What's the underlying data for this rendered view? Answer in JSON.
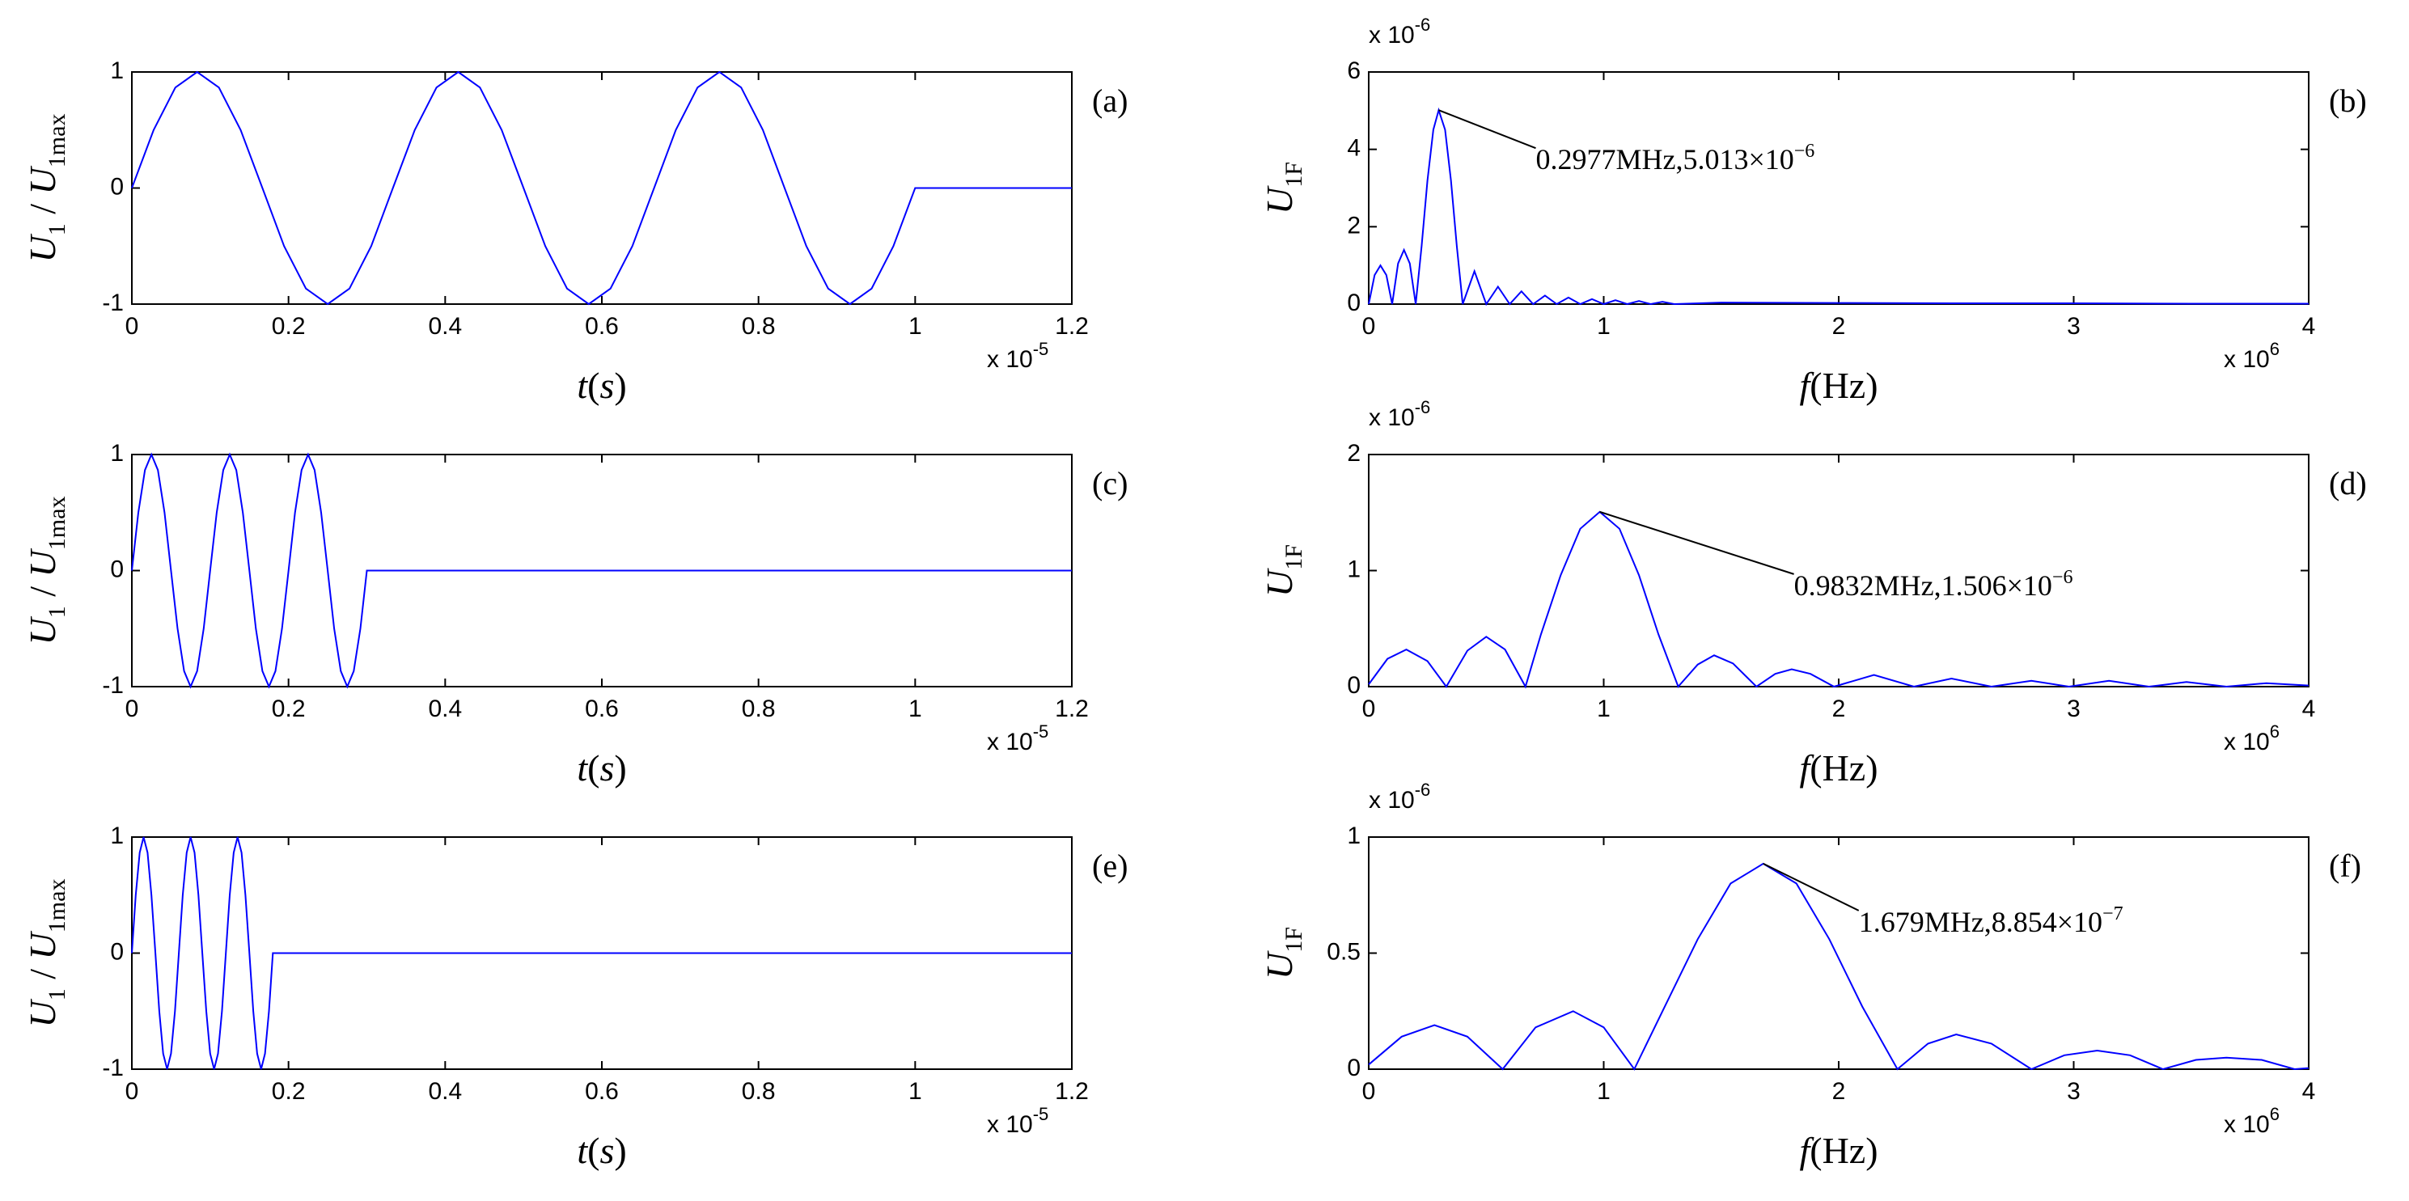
{
  "chart_data": [
    {
      "type": "line",
      "tag": "(a)",
      "color": "#0000ff",
      "xlabel": [
        {
          "text": "t",
          "italic": true
        },
        {
          "text": "("
        },
        {
          "text": "s",
          "italic": true
        },
        {
          "text": ")"
        }
      ],
      "ylabel": [
        {
          "text": "U",
          "italic": true
        },
        {
          "text": "1",
          "sub": true
        },
        {
          "text": " / "
        },
        {
          "text": "U",
          "italic": true
        },
        {
          "text": "1max",
          "sub": true
        }
      ],
      "x_scale_label": "x 10",
      "x_scale_exponent": "-5",
      "xlim": [
        0,
        1.2
      ],
      "xticks": [
        0,
        0.2,
        0.4,
        0.6,
        0.8,
        1,
        1.2
      ],
      "ylim": [
        -1,
        1
      ],
      "yticks": [
        -1,
        0,
        1
      ],
      "x": [
        0,
        0.0278,
        0.0556,
        0.0833,
        0.1111,
        0.1389,
        0.1667,
        0.1944,
        0.2222,
        0.25,
        0.2778,
        0.3056,
        0.3333,
        0.3611,
        0.3889,
        0.4167,
        0.4444,
        0.4722,
        0.5,
        0.5278,
        0.5556,
        0.5833,
        0.6111,
        0.6389,
        0.6667,
        0.6944,
        0.7222,
        0.75,
        0.7778,
        0.8056,
        0.8333,
        0.8611,
        0.8889,
        0.9167,
        0.9444,
        0.9722,
        1.0,
        1.2
      ],
      "values": [
        0,
        0.5,
        0.866,
        1,
        0.866,
        0.5,
        0,
        -0.5,
        -0.866,
        -1,
        -0.866,
        -0.5,
        0,
        0.5,
        0.866,
        1,
        0.866,
        0.5,
        0,
        -0.5,
        -0.866,
        -1,
        -0.866,
        -0.5,
        0,
        0.5,
        0.866,
        1,
        0.866,
        0.5,
        0,
        -0.5,
        -0.866,
        -1,
        -0.866,
        -0.5,
        0,
        0
      ]
    },
    {
      "type": "line",
      "tag": "(b)",
      "color": "#0000ff",
      "xlabel": [
        {
          "text": "f",
          "italic": true
        },
        {
          "text": "(Hz)"
        }
      ],
      "ylabel": [
        {
          "text": "U",
          "italic": true
        },
        {
          "text": "1F",
          "sub": true
        }
      ],
      "x_scale_label": "x 10",
      "x_scale_exponent": "6",
      "y_scale_label": "x 10",
      "y_scale_exponent": "-6",
      "xlim": [
        0,
        4
      ],
      "xticks": [
        0,
        1,
        2,
        3,
        4
      ],
      "ylim": [
        0,
        6
      ],
      "yticks": [
        0,
        2,
        4,
        6
      ],
      "x": [
        0,
        0.025,
        0.05,
        0.075,
        0.1,
        0.125,
        0.15,
        0.175,
        0.2,
        0.225,
        0.25,
        0.275,
        0.2977,
        0.325,
        0.35,
        0.375,
        0.4,
        0.45,
        0.5,
        0.55,
        0.6,
        0.65,
        0.7,
        0.75,
        0.8,
        0.85,
        0.9,
        0.95,
        1.0,
        1.05,
        1.1,
        1.15,
        1.2,
        1.25,
        1.3,
        1.5,
        2,
        2.5,
        3,
        3.5,
        4
      ],
      "values": [
        0,
        0.75,
        1.0,
        0.75,
        0,
        1.05,
        1.4,
        1.05,
        0,
        1.5,
        3.19,
        4.51,
        5.013,
        4.51,
        3.19,
        1.5,
        0,
        0.85,
        0,
        0.45,
        0,
        0.33,
        0,
        0.22,
        0,
        0.17,
        0,
        0.13,
        0,
        0.1,
        0,
        0.08,
        0,
        0.06,
        0,
        0.04,
        0.03,
        0.02,
        0.02,
        0.01,
        0.01
      ],
      "annotation": {
        "text": "0.2977MHz,5.013×10",
        "exponent": "−6",
        "x": 0.2977,
        "y": 5.013
      }
    },
    {
      "type": "line",
      "tag": "(c)",
      "color": "#0000ff",
      "xlabel": [
        {
          "text": "t",
          "italic": true
        },
        {
          "text": "("
        },
        {
          "text": "s",
          "italic": true
        },
        {
          "text": ")"
        }
      ],
      "ylabel": [
        {
          "text": "U",
          "italic": true
        },
        {
          "text": "1",
          "sub": true
        },
        {
          "text": " / "
        },
        {
          "text": "U",
          "italic": true
        },
        {
          "text": "1max",
          "sub": true
        }
      ],
      "x_scale_label": "x 10",
      "x_scale_exponent": "-5",
      "xlim": [
        0,
        1.2
      ],
      "xticks": [
        0,
        0.2,
        0.4,
        0.6,
        0.8,
        1,
        1.2
      ],
      "ylim": [
        -1,
        1
      ],
      "yticks": [
        -1,
        0,
        1
      ],
      "x": [
        0,
        0.0083,
        0.0167,
        0.025,
        0.0333,
        0.0417,
        0.05,
        0.0583,
        0.0667,
        0.075,
        0.0833,
        0.0917,
        0.1,
        0.1083,
        0.1167,
        0.125,
        0.1333,
        0.1417,
        0.15,
        0.1583,
        0.1667,
        0.175,
        0.1833,
        0.1917,
        0.2,
        0.2083,
        0.2167,
        0.225,
        0.2333,
        0.2417,
        0.25,
        0.2583,
        0.2667,
        0.275,
        0.2833,
        0.2917,
        0.3,
        1.2
      ],
      "values": [
        0,
        0.5,
        0.866,
        1,
        0.866,
        0.5,
        0,
        -0.5,
        -0.866,
        -1,
        -0.866,
        -0.5,
        0,
        0.5,
        0.866,
        1,
        0.866,
        0.5,
        0,
        -0.5,
        -0.866,
        -1,
        -0.866,
        -0.5,
        0,
        0.5,
        0.866,
        1,
        0.866,
        0.5,
        0,
        -0.5,
        -0.866,
        -1,
        -0.866,
        -0.5,
        0,
        0
      ]
    },
    {
      "type": "line",
      "tag": "(d)",
      "color": "#0000ff",
      "xlabel": [
        {
          "text": "f",
          "italic": true
        },
        {
          "text": "(Hz)"
        }
      ],
      "ylabel": [
        {
          "text": "U",
          "italic": true
        },
        {
          "text": "1F",
          "sub": true
        }
      ],
      "x_scale_label": "x 10",
      "x_scale_exponent": "6",
      "y_scale_label": "x 10",
      "y_scale_exponent": "-6",
      "xlim": [
        0,
        4
      ],
      "xticks": [
        0,
        1,
        2,
        3,
        4
      ],
      "ylim": [
        0,
        2
      ],
      "yticks": [
        0,
        1,
        2
      ],
      "x": [
        0,
        0.08,
        0.16,
        0.25,
        0.33,
        0.42,
        0.5,
        0.58,
        0.667,
        0.733,
        0.817,
        0.9,
        0.9832,
        1.067,
        1.15,
        1.233,
        1.317,
        1.4,
        1.47,
        1.55,
        1.65,
        1.73,
        1.8,
        1.88,
        1.98,
        2.15,
        2.32,
        2.48,
        2.65,
        2.82,
        2.98,
        3.15,
        3.32,
        3.48,
        3.65,
        3.82,
        4
      ],
      "values": [
        0.02,
        0.24,
        0.32,
        0.22,
        0,
        0.31,
        0.43,
        0.32,
        0,
        0.45,
        0.96,
        1.36,
        1.506,
        1.36,
        0.96,
        0.45,
        0,
        0.19,
        0.27,
        0.2,
        0,
        0.11,
        0.15,
        0.11,
        0,
        0.1,
        0,
        0.07,
        0,
        0.05,
        0,
        0.05,
        0,
        0.04,
        0,
        0.03,
        0.01
      ],
      "annotation": {
        "text": "0.9832MHz,1.506×10",
        "exponent": "−6",
        "x": 0.9832,
        "y": 1.506
      }
    },
    {
      "type": "line",
      "tag": "(e)",
      "color": "#0000ff",
      "xlabel": [
        {
          "text": "t",
          "italic": true
        },
        {
          "text": "("
        },
        {
          "text": "s",
          "italic": true
        },
        {
          "text": ")"
        }
      ],
      "ylabel": [
        {
          "text": "U",
          "italic": true
        },
        {
          "text": "1",
          "sub": true
        },
        {
          "text": " / "
        },
        {
          "text": "U",
          "italic": true
        },
        {
          "text": "1max",
          "sub": true
        }
      ],
      "x_scale_label": "x 10",
      "x_scale_exponent": "-5",
      "xlim": [
        0,
        1.2
      ],
      "xticks": [
        0,
        0.2,
        0.4,
        0.6,
        0.8,
        1,
        1.2
      ],
      "ylim": [
        -1,
        1
      ],
      "yticks": [
        -1,
        0,
        1
      ],
      "x": [
        0,
        0.005,
        0.01,
        0.015,
        0.02,
        0.025,
        0.03,
        0.035,
        0.04,
        0.045,
        0.05,
        0.055,
        0.06,
        0.065,
        0.07,
        0.075,
        0.08,
        0.085,
        0.09,
        0.095,
        0.1,
        0.105,
        0.11,
        0.115,
        0.12,
        0.125,
        0.13,
        0.135,
        0.14,
        0.145,
        0.15,
        0.155,
        0.16,
        0.165,
        0.17,
        0.175,
        0.18,
        1.2
      ],
      "values": [
        0,
        0.5,
        0.866,
        1,
        0.866,
        0.5,
        0,
        -0.5,
        -0.866,
        -1,
        -0.866,
        -0.5,
        0,
        0.5,
        0.866,
        1,
        0.866,
        0.5,
        0,
        -0.5,
        -0.866,
        -1,
        -0.866,
        -0.5,
        0,
        0.5,
        0.866,
        1,
        0.866,
        0.5,
        0,
        -0.5,
        -0.866,
        -1,
        -0.866,
        -0.5,
        0,
        0
      ]
    },
    {
      "type": "line",
      "tag": "(f)",
      "color": "#0000ff",
      "xlabel": [
        {
          "text": "f",
          "italic": true
        },
        {
          "text": "(Hz)"
        }
      ],
      "ylabel": [
        {
          "text": "U",
          "italic": true
        },
        {
          "text": "1F",
          "sub": true
        }
      ],
      "x_scale_label": "x 10",
      "x_scale_exponent": "6",
      "y_scale_label": "x 10",
      "y_scale_exponent": "-6",
      "xlim": [
        0,
        4
      ],
      "xticks": [
        0,
        1,
        2,
        3,
        4
      ],
      "ylim": [
        0,
        1
      ],
      "yticks": [
        0,
        0.5,
        1
      ],
      "x": [
        0,
        0.14,
        0.28,
        0.42,
        0.57,
        0.71,
        0.87,
        1.0,
        1.13,
        1.26,
        1.4,
        1.54,
        1.679,
        1.82,
        1.96,
        2.1,
        2.25,
        2.38,
        2.5,
        2.65,
        2.82,
        2.96,
        3.1,
        3.24,
        3.38,
        3.52,
        3.65,
        3.8,
        3.94,
        4
      ],
      "values": [
        0.02,
        0.14,
        0.19,
        0.14,
        0,
        0.18,
        0.25,
        0.18,
        0,
        0.27,
        0.56,
        0.8,
        0.8854,
        0.8,
        0.56,
        0.27,
        0,
        0.11,
        0.15,
        0.11,
        0,
        0.06,
        0.08,
        0.06,
        0,
        0.04,
        0.05,
        0.04,
        0,
        0.005
      ],
      "annotation": {
        "text": "1.679MHz,8.854×10",
        "exponent": "−7",
        "x": 1.679,
        "y": 0.8854
      }
    }
  ]
}
